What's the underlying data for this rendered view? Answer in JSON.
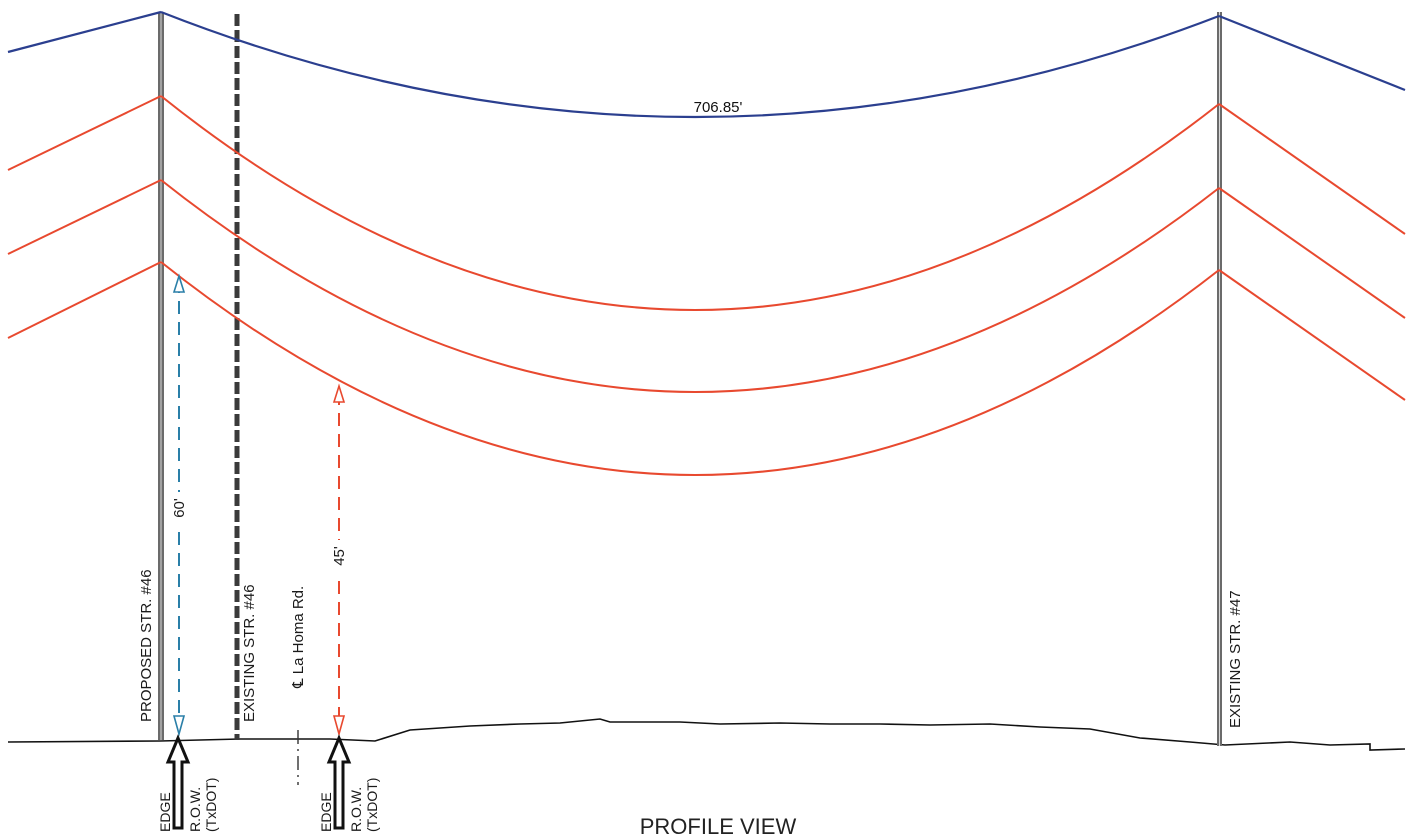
{
  "diagram": {
    "title": "PROFILE VIEW",
    "span_length": "706.85'",
    "structures": {
      "proposed_46": "PROPOSED STR. #46",
      "existing_46": "EXISTING STR. #46",
      "existing_47": "EXISTING STR. #47"
    },
    "road_centerline": "℄ La Homa Rd.",
    "clearances": {
      "shield_wire": "60'",
      "conductor": "45'"
    },
    "row_marker": {
      "line1": "EDGE",
      "line2": "R.O.W.",
      "line3": "(TxDOT)"
    },
    "colors": {
      "shield_wire": "#2b3f8f",
      "conductor": "#e8492f",
      "clearance_60": "#2a7fa8",
      "clearance_45": "#e8492f",
      "ground": "#111111",
      "structure": "#555555"
    }
  }
}
